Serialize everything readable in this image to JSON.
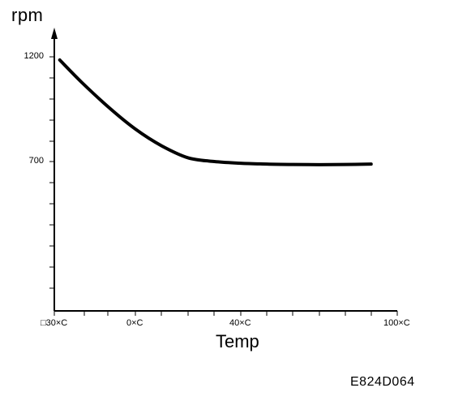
{
  "chart_data": {
    "type": "line",
    "ylabel": "rpm",
    "xlabel": "Temp",
    "x_tick_labels": [
      "□30×C",
      "0×C",
      "40×C",
      "100×C"
    ],
    "y_tick_labels": [
      "1200",
      "700"
    ],
    "x_tick_values": [
      -30,
      0,
      40,
      100
    ],
    "y_tick_values": [
      1200,
      700
    ],
    "xlim": [
      -30,
      100
    ],
    "ylim": [
      0,
      1400
    ],
    "series": [
      {
        "x": [
          -28,
          -20,
          -10,
          0,
          10,
          20,
          30,
          40,
          50,
          60,
          70,
          80,
          90
        ],
        "y": [
          1185,
          1080,
          960,
          855,
          775,
          718,
          700,
          692,
          688,
          686,
          685,
          686,
          688
        ]
      }
    ],
    "grid": false,
    "line_color": "#000000"
  },
  "footer_code": "E824D064"
}
